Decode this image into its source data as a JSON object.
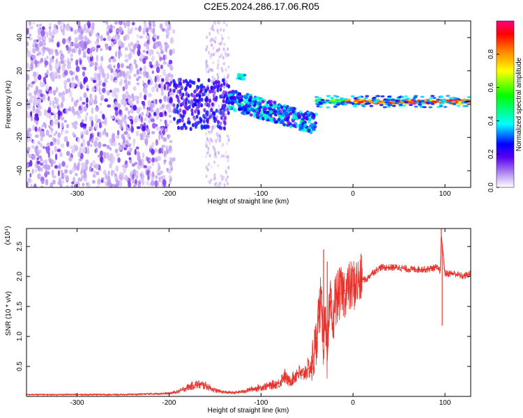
{
  "title": "C2E5.2024.286.17.06.R05",
  "chart_data": [
    {
      "type": "heatmap",
      "xlabel": "Height of straight line (km)",
      "ylabel": "Frequency (Hz)",
      "xlim": [
        -355,
        128
      ],
      "ylim": [
        -50,
        50
      ],
      "xticks": [
        "-300",
        "-200",
        "-100",
        "0",
        "100"
      ],
      "xtick_values": [
        -300,
        -200,
        -100,
        0,
        100
      ],
      "yticks": [
        "-40",
        "-20",
        "0",
        "20",
        "40"
      ],
      "ytick_values": [
        -40,
        -20,
        0,
        20,
        40
      ],
      "colorbar": {
        "label": "Normalized spectral amplitude",
        "range": [
          0,
          1
        ],
        "ticks": [
          "0.0",
          "0.2",
          "0.4",
          "0.6",
          "0.8"
        ],
        "tick_values": [
          0.0,
          0.2,
          0.4,
          0.6,
          0.8
        ],
        "colors": [
          "#ffffff",
          "#b794f0",
          "#5a00f0",
          "#0000ff",
          "#00ffff",
          "#00ff00",
          "#ffff00",
          "#ff8000",
          "#ff0000",
          "#ff0080"
        ]
      },
      "features": [
        {
          "x_range": [
            -355,
            -195
          ],
          "description_value": "broadband weak-to-moderate scatter",
          "amplitude": 0.1
        },
        {
          "x_range": [
            -195,
            -160
          ],
          "amplitude": 0.0
        },
        {
          "x_range": [
            -160,
            -135
          ],
          "amplitude": 0.08
        },
        {
          "x": [
            -125,
            -118
          ],
          "frequency": 16,
          "amplitude": 0.35
        },
        {
          "x_range": [
            -135,
            -40
          ],
          "frequency_trend": [
            3,
            -12
          ],
          "amplitude": 0.4
        },
        {
          "x_range": [
            -40,
            128
          ],
          "frequency": 2,
          "amplitude": 0.95
        }
      ],
      "grid": false
    },
    {
      "type": "line",
      "xlabel": "Height of straight line (km)",
      "ylabel": "SNR (10 * v/v)",
      "y_multiplier": "(x10⁴)",
      "xlim": [
        -355,
        128
      ],
      "ylim": [
        0,
        2.8
      ],
      "xticks": [
        "-300",
        "-200",
        "-100",
        "0",
        "100"
      ],
      "xtick_values": [
        -300,
        -200,
        -100,
        0,
        100
      ],
      "yticks": [
        "0.5",
        "1.0",
        "1.5",
        "2.0",
        "2.5"
      ],
      "ytick_values": [
        0.5,
        1.0,
        1.5,
        2.0,
        2.5
      ],
      "series": [
        {
          "color": "#e8332c",
          "x": [
            -355,
            -300,
            -250,
            -200,
            -190,
            -180,
            -170,
            -160,
            -150,
            -140,
            -130,
            -120,
            -110,
            -100,
            -90,
            -80,
            -75,
            -70,
            -65,
            -60,
            -55,
            -50,
            -45,
            -40,
            -38,
            -35,
            -32,
            -30,
            -28,
            -25,
            -22,
            -20,
            -15,
            -10,
            -5,
            0,
            5,
            10,
            15,
            20,
            25,
            30,
            35,
            40,
            50,
            60,
            70,
            80,
            90,
            95,
            96,
            100,
            110,
            120,
            128
          ],
          "y": [
            0.03,
            0.03,
            0.03,
            0.05,
            0.08,
            0.15,
            0.2,
            0.18,
            0.1,
            0.07,
            0.06,
            0.08,
            0.12,
            0.15,
            0.18,
            0.22,
            0.35,
            0.25,
            0.3,
            0.4,
            0.35,
            0.45,
            0.5,
            0.9,
            1.3,
            1.6,
            0.9,
            1.5,
            0.6,
            1.6,
            1.1,
            1.6,
            1.7,
            1.75,
            1.8,
            1.85,
            1.9,
            1.95,
            1.95,
            2.05,
            2.1,
            2.15,
            2.15,
            2.15,
            2.15,
            2.12,
            2.12,
            2.12,
            2.15,
            2.1,
            2.7,
            2.05,
            2.05,
            2.0,
            2.05
          ]
        }
      ],
      "spikes": [
        {
          "x": -32,
          "y": 2.45
        },
        {
          "x": -28,
          "y": 2.25
        },
        {
          "x": 96,
          "y": 2.8
        },
        {
          "x": 97,
          "y": 1.18
        }
      ],
      "grid": false
    }
  ]
}
